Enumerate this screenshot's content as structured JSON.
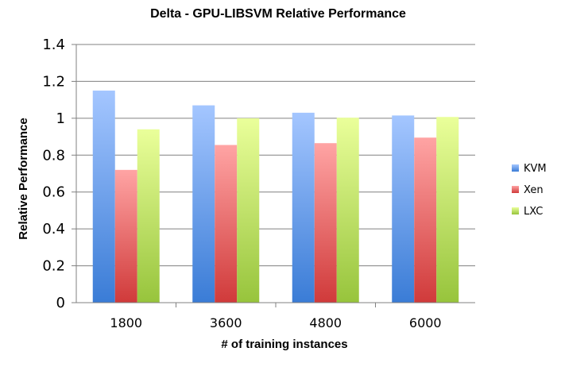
{
  "chart_data": {
    "type": "bar",
    "title": "Delta - GPU-LIBSVM  Relative Performance",
    "xlabel": "# of training instances",
    "ylabel": "Relative Performance",
    "categories": [
      "1800",
      "3600",
      "4800",
      "6000"
    ],
    "ylim": [
      0,
      1.4
    ],
    "yticks": [
      "0",
      "0.2",
      "0.4",
      "0.6",
      "0.8",
      "1",
      "1.2",
      "1.4"
    ],
    "grid": true,
    "legend_position": "right",
    "series": [
      {
        "name": "KVM",
        "values": [
          1.15,
          1.07,
          1.03,
          1.015
        ],
        "color_top": "#a4c6ff",
        "color_bottom": "#3a7cd6"
      },
      {
        "name": "Xen",
        "values": [
          0.72,
          0.855,
          0.865,
          0.895
        ],
        "color_top": "#ffa4a4",
        "color_bottom": "#d03a3a"
      },
      {
        "name": "LXC",
        "values": [
          0.94,
          1.0,
          1.003,
          1.007
        ],
        "color_top": "#eaff9a",
        "color_bottom": "#97c43c"
      }
    ]
  }
}
